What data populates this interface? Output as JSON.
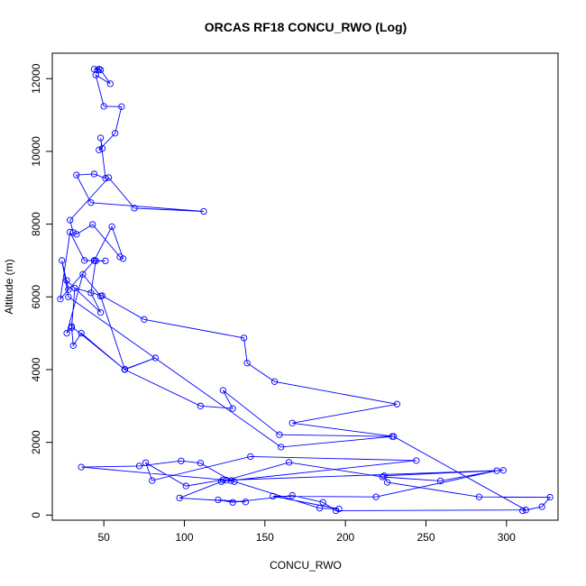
{
  "chart_data": {
    "type": "line",
    "title": "ORCAS RF18 CONCU_RWO (Log)",
    "xlabel": "CONCU_RWO",
    "ylabel": "Altitude (m)",
    "xlim": [
      18,
      332
    ],
    "ylim": [
      -140,
      12700
    ],
    "xticks": [
      50,
      100,
      150,
      200,
      250,
      300
    ],
    "xtick_labels": [
      "50",
      "100",
      "150",
      "200",
      "250",
      "300"
    ],
    "yticks": [
      0,
      2000,
      4000,
      6000,
      8000,
      10000,
      12000
    ],
    "ytick_labels": [
      "0",
      "2000",
      "4000",
      "6000",
      "8000",
      "10000",
      "12000"
    ],
    "grid": false,
    "series_color": "#0000ff",
    "marker": "open-circle",
    "x": [
      310,
      322,
      327,
      283,
      226,
      224,
      298,
      126,
      36,
      72,
      98,
      110,
      129,
      244,
      141,
      80,
      76,
      101,
      124,
      131,
      184,
      196,
      155,
      219,
      294,
      259,
      223,
      165,
      123,
      97,
      138,
      121,
      130,
      167,
      186,
      194,
      312,
      230,
      167,
      232,
      156,
      139,
      137,
      75,
      49,
      32,
      30,
      27,
      37,
      48,
      63,
      82,
      63,
      36,
      31,
      30,
      63,
      110,
      130,
      124,
      159,
      229,
      160,
      28,
      24,
      28,
      27,
      48,
      42,
      45,
      51,
      44,
      38,
      29,
      23,
      44,
      55,
      62,
      60,
      43,
      33,
      31,
      29,
      53,
      69,
      112,
      42,
      33,
      44,
      51,
      48,
      49,
      47,
      57,
      61,
      50,
      45,
      54,
      48,
      46,
      47,
      44
    ],
    "y": [
      120,
      230,
      490,
      500,
      900,
      1080,
      1230,
      960,
      1320,
      1350,
      1490,
      1430,
      950,
      1500,
      1610,
      950,
      1440,
      800,
      970,
      920,
      190,
      170,
      520,
      500,
      1220,
      940,
      1050,
      1450,
      920,
      470,
      360,
      420,
      350,
      540,
      350,
      120,
      140,
      2160,
      2530,
      3050,
      3670,
      4180,
      4870,
      5380,
      6030,
      6240,
      5150,
      5000,
      6620,
      6020,
      4010,
      4320,
      4000,
      5000,
      4660,
      5190,
      4000,
      3000,
      2930,
      3430,
      2210,
      2160,
      1870,
      6000,
      7000,
      6200,
      6450,
      5570,
      6110,
      6990,
      6990,
      7000,
      7000,
      7780,
      5940,
      7000,
      7930,
      7050,
      7100,
      7990,
      7720,
      7770,
      8110,
      9280,
      8440,
      8350,
      8590,
      9350,
      9380,
      9260,
      10370,
      10080,
      10040,
      10500,
      11230,
      11240,
      12100,
      11860,
      12240,
      12230,
      12260,
      12260
    ]
  }
}
